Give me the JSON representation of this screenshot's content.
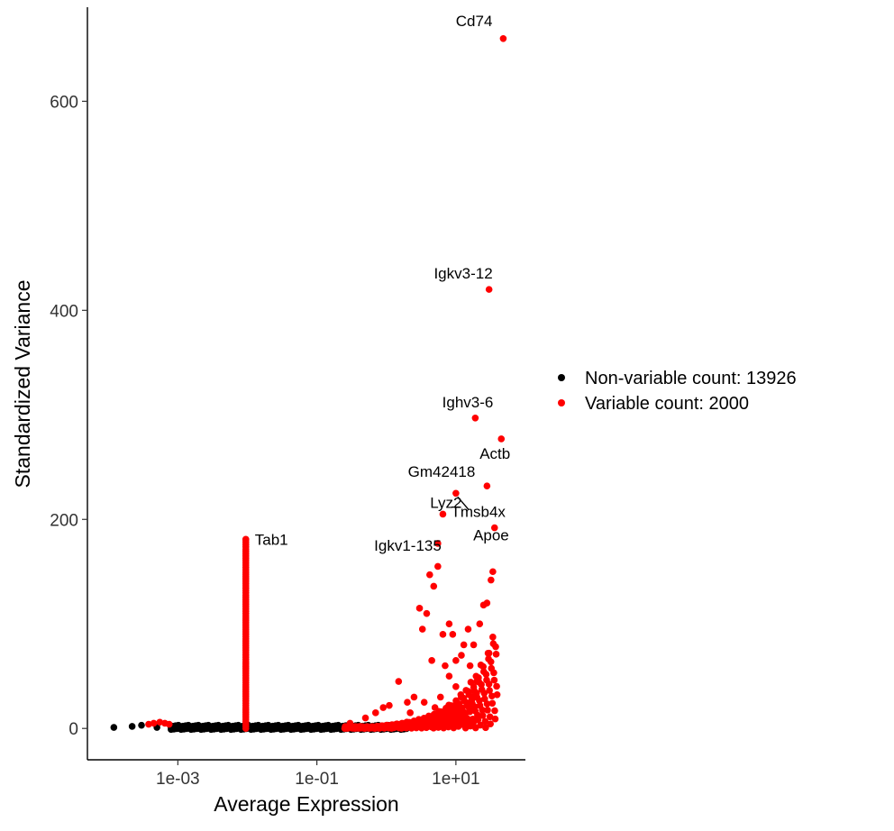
{
  "chart_data": {
    "type": "scatter",
    "x_scale": "log10",
    "xlabel": "Average Expression",
    "ylabel": "Standardized Variance",
    "x_ticks": [
      {
        "value": 0.001,
        "label": "1e-03"
      },
      {
        "value": 0.1,
        "label": "1e-01"
      },
      {
        "value": 10,
        "label": "1e+01"
      }
    ],
    "y_ticks": [
      {
        "value": 0,
        "label": "0"
      },
      {
        "value": 200,
        "label": "200"
      },
      {
        "value": 400,
        "label": "400"
      },
      {
        "value": 600,
        "label": "600"
      }
    ],
    "xlim": [
      5e-05,
      100
    ],
    "ylim": [
      -30,
      690
    ],
    "grid": false,
    "legend_position": "right",
    "colors": {
      "non_variable": "#000000",
      "variable": "#ff0000"
    },
    "series": [
      {
        "name": "Non-variable count: 13926",
        "color": "#000000",
        "points": [
          {
            "x": 0.00012,
            "y": 1
          },
          {
            "x": 0.00022,
            "y": 2
          },
          {
            "x": 0.0003,
            "y": 3
          },
          {
            "x": 0.0005,
            "y": 1
          },
          {
            "x": 0.0008,
            "y": 1
          },
          {
            "x": 0.001,
            "y": 0
          },
          {
            "x": 0.002,
            "y": 0
          },
          {
            "x": 0.003,
            "y": 1
          },
          {
            "x": 0.005,
            "y": 0
          },
          {
            "x": 0.008,
            "y": 0
          },
          {
            "x": 0.012,
            "y": 1
          },
          {
            "x": 0.02,
            "y": 0
          },
          {
            "x": 0.04,
            "y": 1
          },
          {
            "x": 0.06,
            "y": 0
          },
          {
            "x": 0.1,
            "y": 1
          },
          {
            "x": 0.15,
            "y": 2
          },
          {
            "x": 0.25,
            "y": 1
          },
          {
            "x": 0.4,
            "y": 2
          },
          {
            "x": 0.7,
            "y": 1
          },
          {
            "x": 1.0,
            "y": 2
          },
          {
            "x": 1.5,
            "y": 1
          }
        ],
        "band": {
          "x_from": 0.0008,
          "x_to": 2.0,
          "y_from": -1,
          "y_to": 3
        }
      },
      {
        "name": "Variable count: 2000",
        "color": "#ff0000",
        "points": [
          {
            "x": 0.00038,
            "y": 4
          },
          {
            "x": 0.00045,
            "y": 5
          },
          {
            "x": 0.00055,
            "y": 6
          },
          {
            "x": 0.00065,
            "y": 5
          },
          {
            "x": 0.00075,
            "y": 4
          },
          {
            "x": 0.3,
            "y": 5
          },
          {
            "x": 0.5,
            "y": 10
          },
          {
            "x": 0.7,
            "y": 15
          },
          {
            "x": 0.9,
            "y": 20
          },
          {
            "x": 1.1,
            "y": 22
          },
          {
            "x": 1.5,
            "y": 45
          },
          {
            "x": 2.0,
            "y": 25
          },
          {
            "x": 2.5,
            "y": 30
          },
          {
            "x": 3.0,
            "y": 115
          },
          {
            "x": 3.3,
            "y": 95
          },
          {
            "x": 3.8,
            "y": 110
          },
          {
            "x": 4.2,
            "y": 147
          },
          {
            "x": 4.5,
            "y": 65
          },
          {
            "x": 4.8,
            "y": 136
          },
          {
            "x": 5.5,
            "y": 155
          },
          {
            "x": 6.5,
            "y": 90
          },
          {
            "x": 7.0,
            "y": 60
          },
          {
            "x": 8.0,
            "y": 100
          },
          {
            "x": 9.0,
            "y": 90
          },
          {
            "x": 10.0,
            "y": 40
          },
          {
            "x": 12.0,
            "y": 70
          },
          {
            "x": 15.0,
            "y": 95
          },
          {
            "x": 18.0,
            "y": 80
          },
          {
            "x": 22.0,
            "y": 100
          },
          {
            "x": 25.0,
            "y": 118
          },
          {
            "x": 28.0,
            "y": 120
          },
          {
            "x": 30.0,
            "y": 72
          },
          {
            "x": 32.0,
            "y": 142
          },
          {
            "x": 34.0,
            "y": 150
          },
          {
            "x": 6.0,
            "y": 30
          },
          {
            "x": 8.0,
            "y": 50
          },
          {
            "x": 10.0,
            "y": 65
          },
          {
            "x": 13.0,
            "y": 80
          },
          {
            "x": 16.0,
            "y": 60
          },
          {
            "x": 20.0,
            "y": 45
          },
          {
            "x": 5.0,
            "y": 20
          },
          {
            "x": 3.5,
            "y": 25
          },
          {
            "x": 2.2,
            "y": 15
          }
        ],
        "labeled": [
          {
            "gene": "Cd74",
            "x": 48,
            "y": 660
          },
          {
            "gene": "Igkv3-12",
            "x": 30,
            "y": 420
          },
          {
            "gene": "Ighv3-6",
            "x": 19,
            "y": 297
          },
          {
            "gene": "Actb",
            "x": 45,
            "y": 277
          },
          {
            "gene": "Gm42418",
            "x": 28,
            "y": 232
          },
          {
            "gene": "Lyz2",
            "x": 10,
            "y": 225
          },
          {
            "gene": "Apoe",
            "x": 36,
            "y": 192
          },
          {
            "gene": "Tmsb4x",
            "x": 6.5,
            "y": 205
          },
          {
            "gene": "Igkv1-135",
            "x": 5.5,
            "y": 177
          },
          {
            "gene": "Tab1",
            "x": 0.0095,
            "y": 181
          }
        ],
        "tab1_column": {
          "x": 0.0095,
          "y_from": 0,
          "y_to": 181
        }
      }
    ]
  }
}
